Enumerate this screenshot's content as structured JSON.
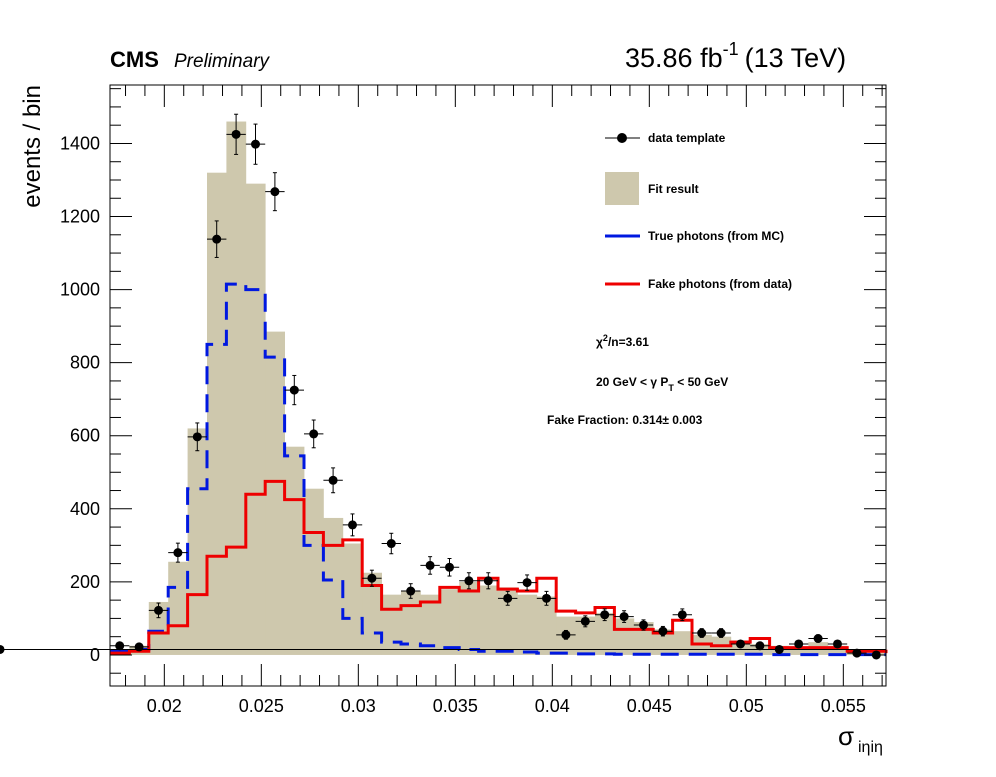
{
  "header": {
    "experiment": "CMS",
    "status": "Preliminary",
    "lumi_value": "35.86 fb",
    "lumi_exponent": "-1",
    "energy": "(13 TeV)"
  },
  "chart_data": {
    "type": "histogram",
    "ylabel": "events / bin",
    "xlabel_symbol": "σ",
    "xlabel_subscript": "iηiη",
    "xlim": [
      0.0172,
      0.0572
    ],
    "ylim": [
      -85,
      1560
    ],
    "xticks": [
      0.02,
      0.025,
      0.03,
      0.035,
      0.04,
      0.045,
      0.05,
      0.055
    ],
    "xtick_labels": [
      "0.02",
      "0.025",
      "0.03",
      "0.035",
      "0.04",
      "0.045",
      "0.05",
      "0.055"
    ],
    "yticks": [
      0,
      200,
      400,
      600,
      800,
      1000,
      1200,
      1400
    ],
    "ytick_labels": [
      "0",
      "200",
      "400",
      "600",
      "800",
      "1000",
      "1200",
      "1400"
    ],
    "bin_edges": [
      0.0172,
      0.0182,
      0.0192,
      0.0202,
      0.0212,
      0.0222,
      0.0232,
      0.0242,
      0.0252,
      0.0262,
      0.0272,
      0.0282,
      0.0292,
      0.0302,
      0.0312,
      0.0322,
      0.0332,
      0.0342,
      0.0352,
      0.0362,
      0.0372,
      0.0382,
      0.0392,
      0.0402,
      0.0412,
      0.0422,
      0.0432,
      0.0442,
      0.0452,
      0.0462,
      0.0472,
      0.0482,
      0.0492,
      0.0502,
      0.0512,
      0.0522,
      0.0532,
      0.0542,
      0.0552,
      0.0562,
      0.0572
    ],
    "series": [
      {
        "name": "data template",
        "kind": "points",
        "color": "#000000",
        "values": [
          25,
          22,
          122,
          280,
          597,
          1138,
          1425,
          1398,
          1268,
          725,
          605,
          478,
          356,
          210,
          305,
          175,
          245,
          240,
          203,
          203,
          155,
          198,
          155,
          55,
          92,
          110,
          105,
          82,
          65,
          110,
          60,
          60,
          30,
          25,
          15,
          30,
          45,
          30,
          5,
          0,
          15
        ],
        "errors": [
          8,
          8,
          20,
          26,
          38,
          50,
          55,
          55,
          52,
          40,
          38,
          34,
          30,
          22,
          28,
          20,
          24,
          24,
          22,
          22,
          19,
          21,
          19,
          12,
          15,
          16,
          16,
          14,
          13,
          16,
          12,
          12,
          9,
          8,
          6,
          9,
          10,
          9,
          4,
          3,
          6
        ]
      },
      {
        "name": "Fit result",
        "kind": "filled-histogram",
        "color": "#cec8ad",
        "values": [
          15,
          25,
          145,
          255,
          620,
          1320,
          1460,
          1290,
          885,
          570,
          455,
          375,
          305,
          225,
          165,
          175,
          165,
          180,
          200,
          190,
          185,
          165,
          160,
          105,
          105,
          115,
          100,
          90,
          70,
          65,
          55,
          50,
          40,
          30,
          25,
          20,
          35,
          25,
          15,
          10,
          5
        ]
      },
      {
        "name": "True photons (from MC)",
        "kind": "step-line",
        "color": "#0018e0",
        "values": [
          10,
          15,
          65,
          185,
          455,
          850,
          1015,
          1000,
          815,
          545,
          300,
          205,
          100,
          60,
          35,
          30,
          25,
          20,
          15,
          10,
          10,
          8,
          5,
          5,
          3,
          3,
          2,
          2,
          2,
          2,
          2,
          2,
          2,
          2,
          1,
          1,
          1,
          1,
          1,
          1,
          1
        ]
      },
      {
        "name": "Fake photons (from data)",
        "kind": "step-line",
        "color": "#ee0000",
        "values": [
          5,
          10,
          60,
          80,
          165,
          270,
          295,
          440,
          475,
          425,
          335,
          300,
          315,
          190,
          125,
          135,
          145,
          185,
          175,
          210,
          180,
          175,
          210,
          120,
          115,
          130,
          70,
          70,
          60,
          95,
          30,
          25,
          35,
          45,
          20,
          20,
          20,
          20,
          10,
          10,
          5
        ]
      }
    ],
    "legend": {
      "position": "top-right",
      "entries": [
        {
          "label": "data template",
          "symbol": "marker"
        },
        {
          "label": "Fit result",
          "symbol": "fill"
        },
        {
          "label": "True photons (from MC)",
          "symbol": "line"
        },
        {
          "label": "Fake photons (from data)",
          "symbol": "line"
        }
      ]
    },
    "annotations": {
      "chi2_base": "χ",
      "chi2_exp": "2",
      "chi2_rest": "/n=3.61",
      "pt_left": "20 GeV < γ P",
      "pt_sub": "T",
      "pt_right": " < 50 GeV",
      "fake_fraction": "Fake Fraction: 0.314± 0.003"
    }
  }
}
